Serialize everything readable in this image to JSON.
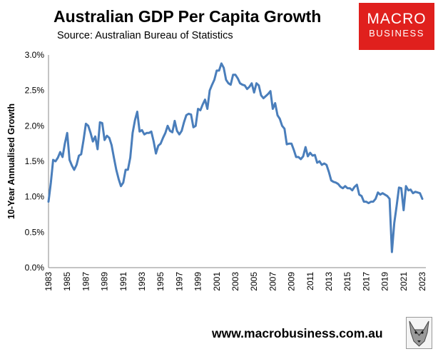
{
  "header": {
    "title": "Australian GDP Per Capita Growth",
    "subtitle": "Source: Australian Bureau of Statistics"
  },
  "logo": {
    "line1": "MACRO",
    "line2": "BUSINESS",
    "color": "#e0201d"
  },
  "footer": {
    "url": "www.macrobusiness.com.au"
  },
  "chart_data": {
    "type": "line",
    "title": "Australian GDP Per Capita Growth",
    "xlabel": "",
    "ylabel": "10-Year Annualised Growth",
    "xlim": [
      1983,
      2023
    ],
    "ylim": [
      0,
      3.0
    ],
    "yticks": [
      0,
      0.5,
      1.0,
      1.5,
      2.0,
      2.5,
      3.0
    ],
    "ytick_labels": [
      "0.0%",
      "0.5%",
      "1.0%",
      "1.5%",
      "2.0%",
      "2.5%",
      "3.0%"
    ],
    "xtick_labels": [
      "1983",
      "1985",
      "1987",
      "1989",
      "1991",
      "1993",
      "1995",
      "1997",
      "1999",
      "2001",
      "2003",
      "2005",
      "2007",
      "2009",
      "2011",
      "2013",
      "2015",
      "2017",
      "2019",
      "2021",
      "2023"
    ],
    "grid": false,
    "line_color": "#4a7ebb",
    "series": [
      {
        "name": "10-Year Annualised Growth",
        "x": [
          1983.0,
          1983.25,
          1983.5,
          1983.75,
          1984.0,
          1984.25,
          1984.5,
          1984.75,
          1985.0,
          1985.25,
          1985.5,
          1985.75,
          1986.0,
          1986.25,
          1986.5,
          1986.75,
          1987.0,
          1987.25,
          1987.5,
          1987.75,
          1988.0,
          1988.25,
          1988.5,
          1988.75,
          1989.0,
          1989.25,
          1989.5,
          1989.75,
          1990.0,
          1990.25,
          1990.5,
          1990.75,
          1991.0,
          1991.25,
          1991.5,
          1991.75,
          1992.0,
          1992.25,
          1992.5,
          1992.75,
          1993.0,
          1993.25,
          1993.5,
          1993.75,
          1994.0,
          1994.25,
          1994.5,
          1994.75,
          1995.0,
          1995.25,
          1995.5,
          1995.75,
          1996.0,
          1996.25,
          1996.5,
          1996.75,
          1997.0,
          1997.25,
          1997.5,
          1997.75,
          1998.0,
          1998.25,
          1998.5,
          1998.75,
          1999.0,
          1999.25,
          1999.5,
          1999.75,
          2000.0,
          2000.25,
          2000.5,
          2000.75,
          2001.0,
          2001.25,
          2001.5,
          2001.75,
          2002.0,
          2002.25,
          2002.5,
          2002.75,
          2003.0,
          2003.25,
          2003.5,
          2003.75,
          2004.0,
          2004.25,
          2004.5,
          2004.75,
          2005.0,
          2005.25,
          2005.5,
          2005.75,
          2006.0,
          2006.25,
          2006.5,
          2006.75,
          2007.0,
          2007.25,
          2007.5,
          2007.75,
          2008.0,
          2008.25,
          2008.5,
          2008.75,
          2009.0,
          2009.25,
          2009.5,
          2009.75,
          2010.0,
          2010.25,
          2010.5,
          2010.75,
          2011.0,
          2011.25,
          2011.5,
          2011.75,
          2012.0,
          2012.25,
          2012.5,
          2012.75,
          2013.0,
          2013.25,
          2013.5,
          2013.75,
          2014.0,
          2014.25,
          2014.5,
          2014.75,
          2015.0,
          2015.25,
          2015.5,
          2015.75,
          2016.0,
          2016.25,
          2016.5,
          2016.75,
          2017.0,
          2017.25,
          2017.5,
          2017.75,
          2018.0,
          2018.25,
          2018.5,
          2018.75,
          2019.0,
          2019.25,
          2019.5,
          2019.75,
          2020.0,
          2020.25,
          2020.5,
          2020.75,
          2021.0,
          2021.25,
          2021.5,
          2021.75,
          2022.0,
          2022.25,
          2022.5,
          2022.75,
          2023.0
        ],
        "y": [
          0.93,
          1.2,
          1.52,
          1.5,
          1.55,
          1.63,
          1.56,
          1.75,
          1.9,
          1.52,
          1.44,
          1.38,
          1.45,
          1.58,
          1.6,
          1.8,
          2.03,
          2.0,
          1.9,
          1.78,
          1.85,
          1.67,
          2.05,
          2.04,
          1.8,
          1.86,
          1.83,
          1.73,
          1.55,
          1.38,
          1.25,
          1.15,
          1.2,
          1.38,
          1.38,
          1.55,
          1.9,
          2.08,
          2.2,
          1.92,
          1.94,
          1.88,
          1.9,
          1.9,
          1.92,
          1.78,
          1.61,
          1.72,
          1.75,
          1.83,
          1.9,
          2.0,
          1.93,
          1.91,
          2.07,
          1.93,
          1.88,
          1.93,
          2.05,
          2.15,
          2.17,
          2.16,
          1.98,
          2.0,
          2.24,
          2.22,
          2.3,
          2.37,
          2.24,
          2.5,
          2.58,
          2.65,
          2.78,
          2.78,
          2.88,
          2.82,
          2.65,
          2.6,
          2.58,
          2.72,
          2.72,
          2.67,
          2.6,
          2.58,
          2.57,
          2.52,
          2.55,
          2.6,
          2.47,
          2.6,
          2.57,
          2.43,
          2.39,
          2.42,
          2.45,
          2.49,
          2.24,
          2.32,
          2.15,
          2.1,
          2.0,
          1.96,
          1.74,
          1.75,
          1.75,
          1.66,
          1.56,
          1.56,
          1.53,
          1.57,
          1.7,
          1.57,
          1.62,
          1.58,
          1.59,
          1.48,
          1.5,
          1.45,
          1.47,
          1.45,
          1.35,
          1.23,
          1.21,
          1.2,
          1.18,
          1.14,
          1.12,
          1.15,
          1.12,
          1.12,
          1.09,
          1.14,
          1.17,
          1.03,
          1.01,
          0.93,
          0.93,
          0.91,
          0.93,
          0.93,
          0.97,
          1.06,
          1.03,
          1.05,
          1.03,
          1.01,
          0.97,
          0.22,
          0.63,
          0.87,
          1.13,
          1.12,
          0.81,
          1.15,
          1.09,
          1.1,
          1.05,
          1.07,
          1.06,
          1.05,
          0.97
        ]
      }
    ]
  }
}
